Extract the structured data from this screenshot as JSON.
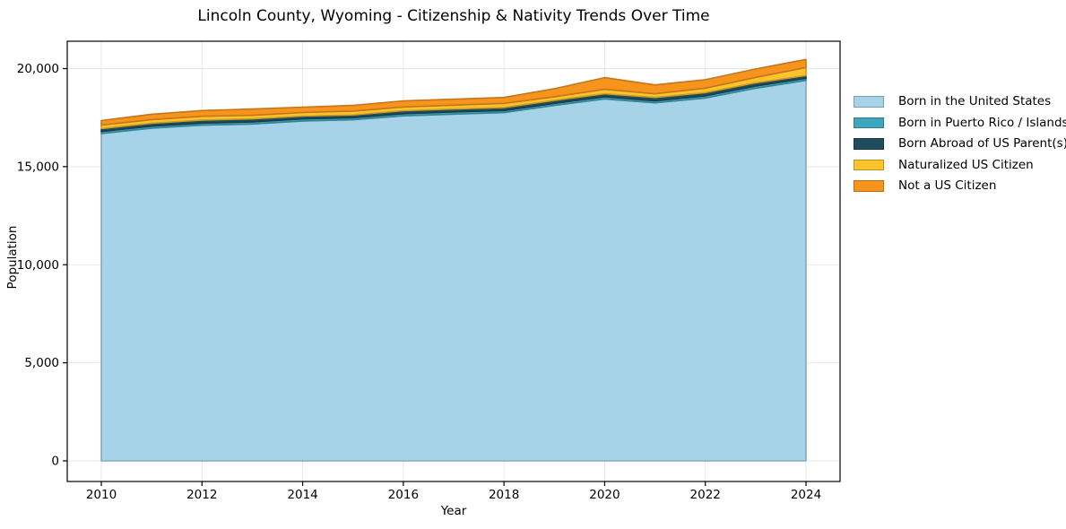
{
  "chart_data": {
    "type": "area",
    "stacked": true,
    "title": "Lincoln County, Wyoming - Citizenship & Nativity Trends Over Time",
    "xlabel": "Year",
    "ylabel": "Population",
    "grid": true,
    "grid_color": "#e7e7e7",
    "axis_color": "#000000",
    "legend_position": "right-outside",
    "x": [
      2010,
      2011,
      2012,
      2013,
      2014,
      2015,
      2016,
      2017,
      2018,
      2019,
      2020,
      2021,
      2022,
      2023,
      2024
    ],
    "x_ticks": {
      "values": [
        2010,
        2012,
        2014,
        2016,
        2018,
        2020,
        2022,
        2024
      ],
      "labels": [
        "2010",
        "2012",
        "2014",
        "2016",
        "2018",
        "2020",
        "2022",
        "2024"
      ]
    },
    "y_ticks": {
      "values": [
        0,
        5000,
        10000,
        15000,
        20000
      ],
      "labels": [
        "0",
        "5,000",
        "10,000",
        "15,000",
        "20,000"
      ]
    },
    "ylim": [
      -1050,
      21500
    ],
    "series": [
      {
        "name": "Born in the United States",
        "color": "#a6d3e8",
        "values": [
          16690,
          16960,
          17115,
          17175,
          17330,
          17390,
          17590,
          17680,
          17755,
          18120,
          18455,
          18255,
          18500,
          19000,
          19400
        ]
      },
      {
        "name": "Born in Puerto Rico / Islands",
        "color": "#3fa5bd",
        "values": [
          105,
          105,
          105,
          110,
          105,
          105,
          110,
          110,
          105,
          105,
          110,
          105,
          110,
          110,
          105
        ]
      },
      {
        "name": "Born Abroad of US Parent(s)",
        "color": "#1f4c5e",
        "values": [
          140,
          150,
          155,
          150,
          140,
          140,
          150,
          150,
          155,
          155,
          150,
          170,
          165,
          165,
          140
        ]
      },
      {
        "name": "Naturalized US Citizen",
        "color": "#fcc32d",
        "values": [
          185,
          185,
          195,
          185,
          185,
          200,
          195,
          195,
          210,
          185,
          230,
          185,
          230,
          275,
          410
        ]
      },
      {
        "name": "Not a US Citizen",
        "color": "#f7941e",
        "values": [
          230,
          275,
          290,
          320,
          275,
          290,
          305,
          305,
          305,
          410,
          595,
          455,
          430,
          430,
          410
        ]
      }
    ]
  }
}
